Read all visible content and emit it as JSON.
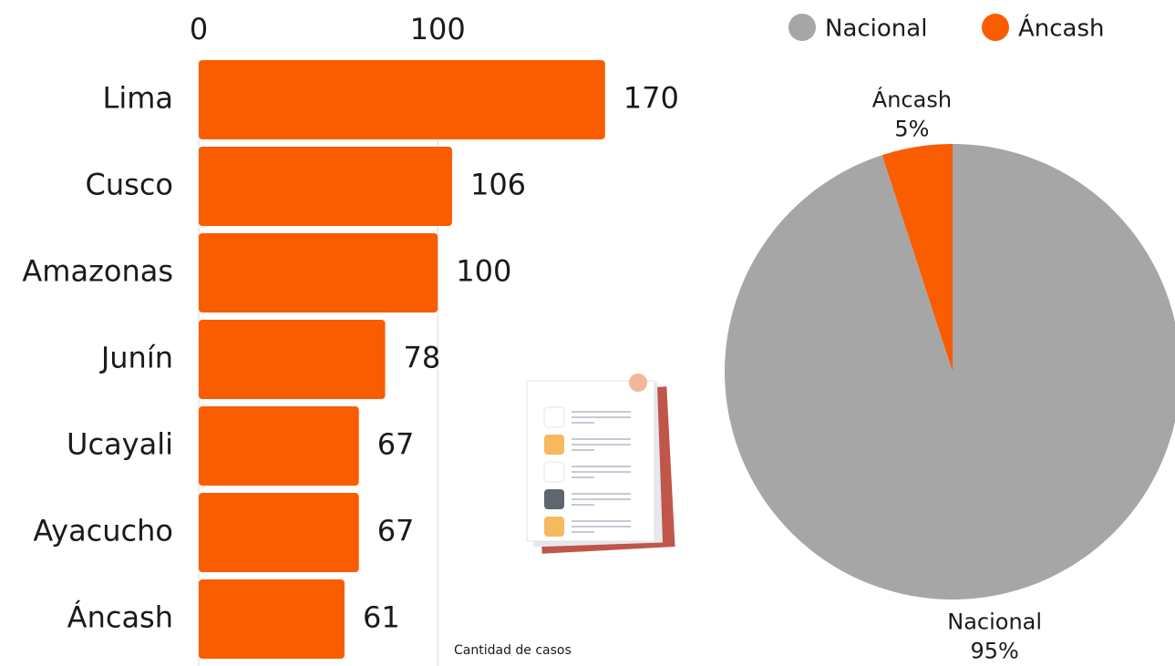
{
  "chart_data": [
    {
      "type": "bar",
      "orientation": "horizontal",
      "categories": [
        "Lima",
        "Cusco",
        "Amazonas",
        "Junín",
        "Ucayali",
        "Ayacucho",
        "Áncash"
      ],
      "values": [
        170,
        106,
        100,
        78,
        67,
        67,
        61
      ],
      "color": "#fa5c00",
      "xlim": [
        0,
        180
      ],
      "xticks": [
        0,
        100
      ],
      "grid": true,
      "x_label": "Cantidad de casos"
    },
    {
      "type": "pie",
      "categories": [
        "Nacional",
        "Áncash"
      ],
      "values": [
        95,
        5
      ],
      "value_labels": [
        "95%",
        "5%"
      ],
      "colors": [
        "#a6a6a6",
        "#fa5c00"
      ],
      "legend": "top"
    }
  ]
}
